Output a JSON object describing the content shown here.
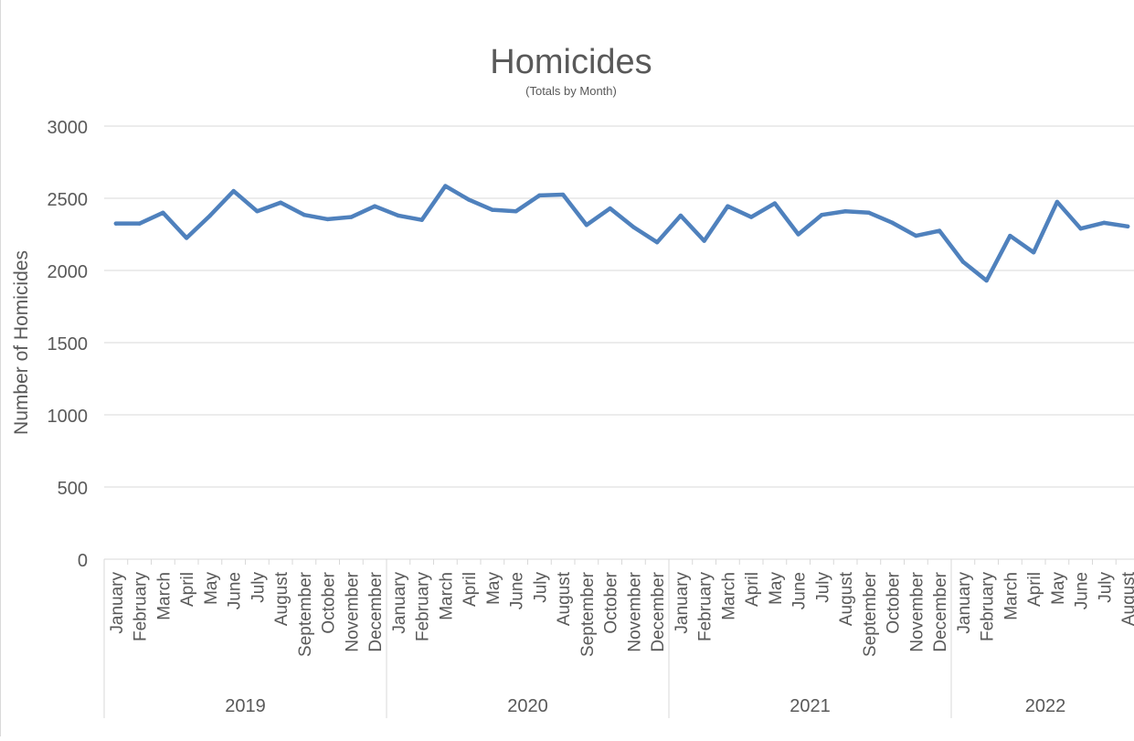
{
  "chart_data": {
    "type": "line",
    "title": "Homicides",
    "subtitle": "(Totals by Month)",
    "xlabel": "",
    "ylabel": "Number of Homicides",
    "ylim": [
      0,
      3000
    ],
    "yticks": [
      "0",
      "500",
      "1000",
      "1500",
      "2000",
      "2500",
      "3000"
    ],
    "grid": true,
    "legend": "none",
    "line_color": "#4f81bd",
    "groups": [
      {
        "label": "2019",
        "months": [
          "January",
          "February",
          "March",
          "April",
          "May",
          "June",
          "July",
          "August",
          "September",
          "October",
          "November",
          "December"
        ]
      },
      {
        "label": "2020",
        "months": [
          "January",
          "February",
          "March",
          "April",
          "May",
          "June",
          "July",
          "August",
          "September",
          "October",
          "November",
          "December"
        ]
      },
      {
        "label": "2021",
        "months": [
          "January",
          "February",
          "March",
          "April",
          "May",
          "June",
          "July",
          "August",
          "September",
          "October",
          "November",
          "December"
        ]
      },
      {
        "label": "2022",
        "months": [
          "January",
          "February",
          "March",
          "April",
          "May",
          "June",
          "July",
          "August"
        ]
      }
    ],
    "series": [
      {
        "values": [
          2325,
          2325,
          2400,
          2225,
          2380,
          2550,
          2410,
          2470,
          2385,
          2355,
          2370,
          2445,
          2380,
          2350,
          2585,
          2490,
          2420,
          2410,
          2520,
          2525,
          2315,
          2430,
          2300,
          2195,
          2380,
          2205,
          2445,
          2370,
          2465,
          2250,
          2385,
          2410,
          2400,
          2330,
          2240,
          2275,
          2060,
          1930,
          2240,
          2125,
          2475,
          2290,
          2330,
          2305
        ]
      }
    ]
  }
}
